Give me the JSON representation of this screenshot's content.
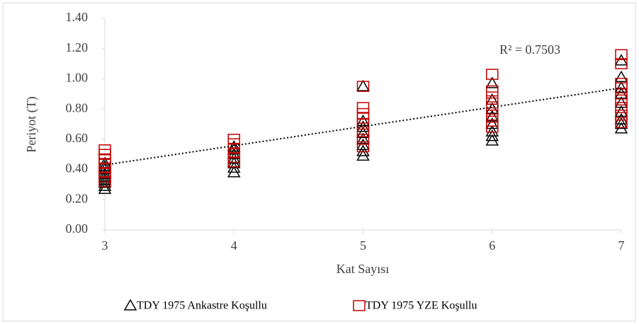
{
  "chart_data": {
    "type": "scatter",
    "x_label": "Kat Sayısı",
    "y_label": "Periyot (T)",
    "annotation": "R² = 0.7503",
    "xlim": [
      3,
      7
    ],
    "xticks": [
      3,
      4,
      5,
      6,
      7
    ],
    "ylim": [
      0,
      1.4
    ],
    "yticks": [
      {
        "value": 0,
        "label": "0.00"
      },
      {
        "value": 0.2,
        "label": "0.20"
      },
      {
        "value": 0.4,
        "label": "0.40"
      },
      {
        "value": 0.6,
        "label": "0.60"
      },
      {
        "value": 0.8,
        "label": "0.80"
      },
      {
        "value": 1,
        "label": "1.00"
      },
      {
        "value": 1.2,
        "label": "1.20"
      },
      {
        "value": 1.4,
        "label": "1.40"
      }
    ],
    "grid": false,
    "legend": "bottom",
    "series": [
      {
        "name": "TDY 1975 Ankastre Koşullu",
        "color": "#000000",
        "marker": "triangle",
        "x": [
          3,
          3,
          3,
          3,
          3,
          3,
          3,
          3,
          3,
          4,
          4,
          4,
          4,
          4,
          4,
          4,
          5,
          5,
          5,
          5,
          5,
          5,
          5,
          5,
          6,
          6,
          6,
          6,
          6,
          6,
          6,
          6,
          7,
          7,
          7,
          7,
          7,
          7,
          7,
          7,
          7
        ],
        "values": [
          0.27,
          0.29,
          0.31,
          0.33,
          0.35,
          0.37,
          0.4,
          0.42,
          0.44,
          0.38,
          0.41,
          0.44,
          0.47,
          0.5,
          0.53,
          0.55,
          0.49,
          0.52,
          0.56,
          0.6,
          0.64,
          0.68,
          0.72,
          0.95,
          0.59,
          0.62,
          0.65,
          0.7,
          0.75,
          0.8,
          0.86,
          0.97,
          0.67,
          0.7,
          0.73,
          0.78,
          0.84,
          0.9,
          0.94,
          1.01,
          1.12
        ]
      },
      {
        "name": "TDY 1975 YZE Koşullu",
        "color": "#c00000",
        "marker": "square",
        "x": [
          3,
          3,
          3,
          3,
          3,
          3,
          3,
          3,
          4,
          4,
          4,
          4,
          4,
          4,
          5,
          5,
          5,
          5,
          5,
          5,
          5,
          5,
          6,
          6,
          6,
          6,
          6,
          6,
          6,
          6,
          7,
          7,
          7,
          7,
          7,
          7,
          7,
          7,
          7
        ],
        "values": [
          0.32,
          0.35,
          0.38,
          0.41,
          0.44,
          0.47,
          0.5,
          0.53,
          0.45,
          0.48,
          0.51,
          0.54,
          0.57,
          0.6,
          0.55,
          0.6,
          0.65,
          0.7,
          0.74,
          0.77,
          0.81,
          0.95,
          0.68,
          0.72,
          0.76,
          0.8,
          0.84,
          0.88,
          0.92,
          1.03,
          0.71,
          0.76,
          0.81,
          0.86,
          0.9,
          0.94,
          0.97,
          1.1,
          1.16
        ]
      }
    ],
    "trendline": {
      "x": [
        3,
        7
      ],
      "values": [
        0.43,
        0.94
      ],
      "color": "#000000"
    }
  }
}
